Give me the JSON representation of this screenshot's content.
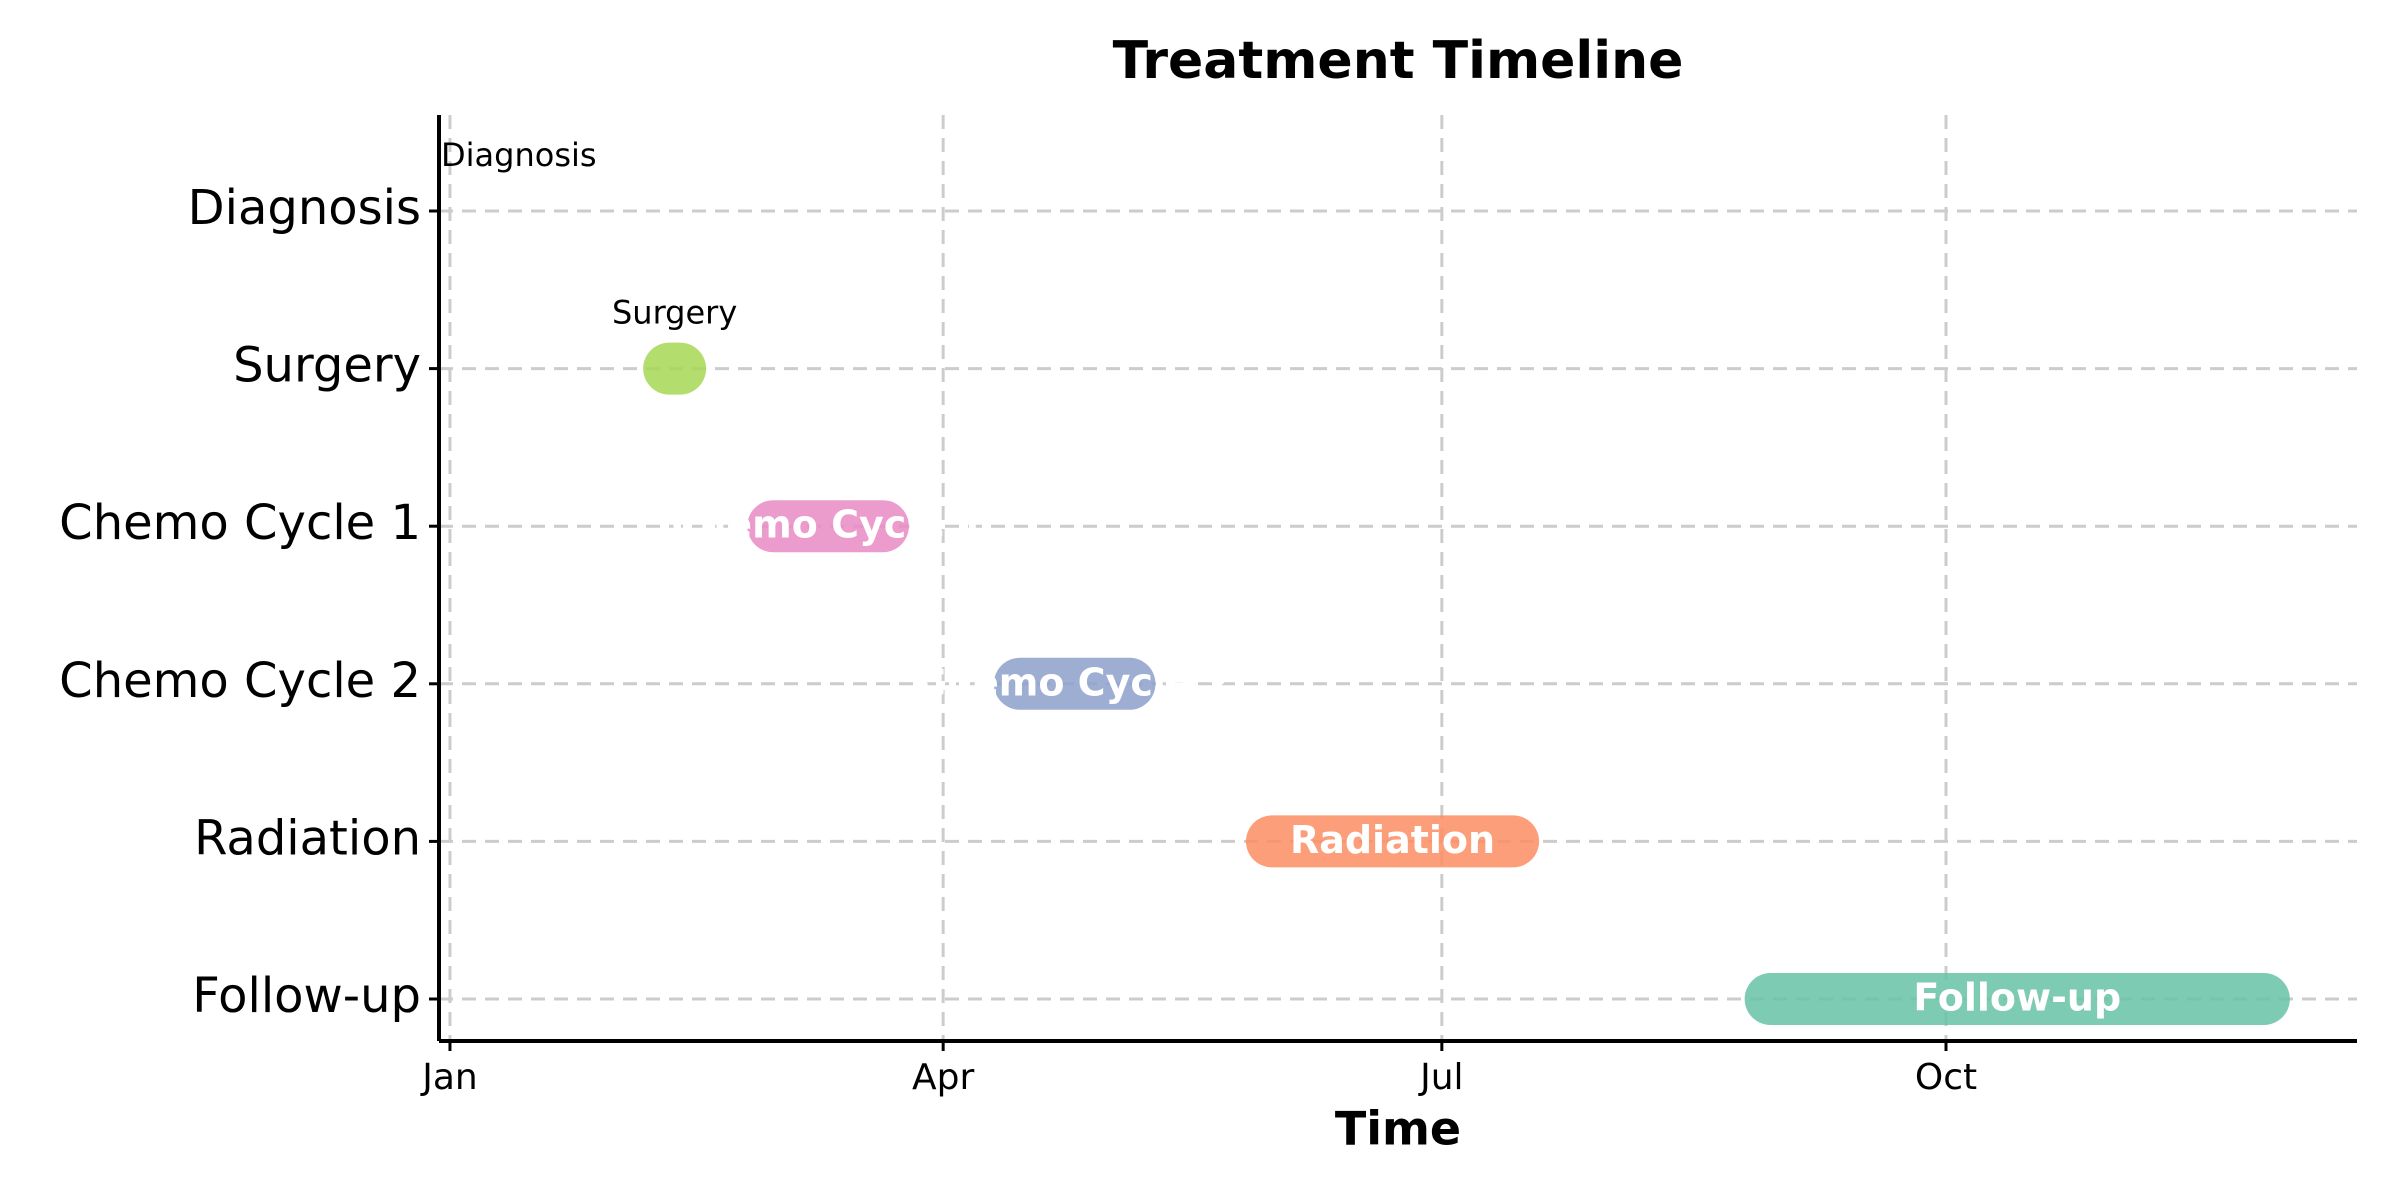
{
  "chart_data": {
    "type": "gantt",
    "title": "Treatment Timeline",
    "x_label": "Time",
    "tasks": [
      {
        "name": "Diagnosis",
        "start": 0,
        "end": 0
      },
      {
        "name": "Surgery",
        "start": 40,
        "end": 42,
        "color": "#a6d854"
      },
      {
        "name": "Chemo Cycle 1",
        "start": 59,
        "end": 79,
        "color": "#e78ac3"
      },
      {
        "name": "Chemo Cycle 2",
        "start": 104,
        "end": 124,
        "color": "#8da0cb"
      },
      {
        "name": "Radiation",
        "start": 150,
        "end": 194,
        "color": "#fc8d62"
      },
      {
        "name": "Follow-up",
        "start": 241,
        "end": 331,
        "color": "#66c2a5"
      }
    ],
    "xlim": [
      -2,
      348
    ],
    "xticks": [
      {
        "value": 0,
        "label": "Jan"
      },
      {
        "value": 90,
        "label": "Apr"
      },
      {
        "value": 181,
        "label": "Jul"
      },
      {
        "value": 273,
        "label": "Oct"
      }
    ],
    "grid": true
  }
}
